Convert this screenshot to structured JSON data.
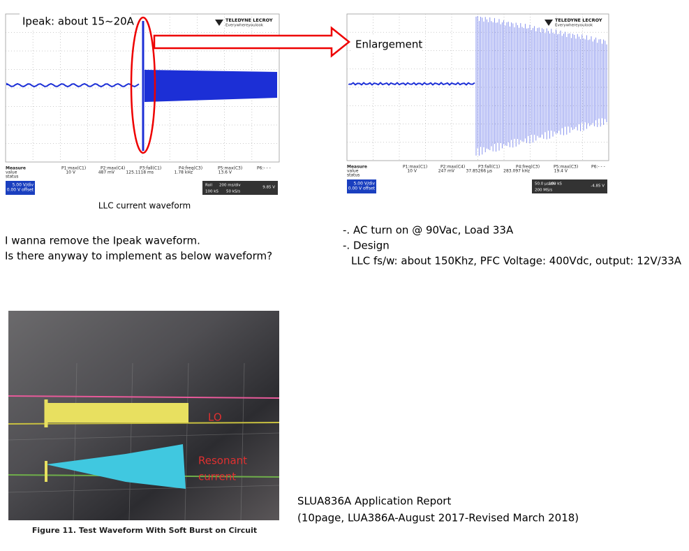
{
  "scope_left": {
    "annotation": "Ipeak: about 15~20A",
    "brand": "TELEDYNE LECROY",
    "tagline": "Everywhereyoulook",
    "measure": {
      "label": "Measure",
      "row_labels": [
        "value",
        "status"
      ],
      "params": [
        "P1:max(C1)",
        "P2:max(C4)",
        "P3:fall(C1)",
        "P4:freq(C3)",
        "P5:max(C3)",
        "P6:- - -"
      ],
      "values": [
        "10 V",
        "487 mV",
        "125.1118 ms",
        "1.78 kHz",
        "13.6 V"
      ]
    },
    "channel": [
      "5.00 V/div",
      "0.00 V offset"
    ],
    "timebase": [
      "Roll",
      "200 ms/div",
      "100 kS",
      "50 kS/s"
    ],
    "trigger": "9.85 V",
    "caption": "LLC current waveform"
  },
  "scope_right": {
    "annotation": "Enlargement",
    "brand": "TELEDYNE LECROY",
    "tagline": "Everywhereyoulook",
    "measure": {
      "label": "Measure",
      "row_labels": [
        "value",
        "status"
      ],
      "params": [
        "P1:max(C1)",
        "P2:max(C4)",
        "P3:fall(C1)",
        "P4:freq(C3)",
        "P5:max(C3)",
        "P6:- - -"
      ],
      "values": [
        "10 V",
        "247 mV",
        "37.85266 µs",
        "283.097 kHz",
        "19.4 V"
      ]
    },
    "channel": [
      "5.00 V/div",
      "0.00 V offset"
    ],
    "timebase": [
      "50.0 µs/div",
      "100 kS",
      "200 MS/s"
    ],
    "trigger": "-4.85 V"
  },
  "question": [
    "I wanna remove the Ipeak waveform.",
    "Is there anyway to implement as below waveform?"
  ],
  "conditions": [
    "-. AC turn on @ 90Vac, Load 33A",
    "-. Design",
    "LLC fs/w: about 150Khz, PFC Voltage: 400Vdc, output: 12V/33A"
  ],
  "photo": {
    "labels": [
      "LO",
      "Resonant",
      "current"
    ],
    "caption": "Figure 11. Test Waveform With Soft Burst on Circuit"
  },
  "reference": [
    "SLUA836A Application Report",
    "(10page, LUA386A-August 2017-Revised March 2018)"
  ]
}
